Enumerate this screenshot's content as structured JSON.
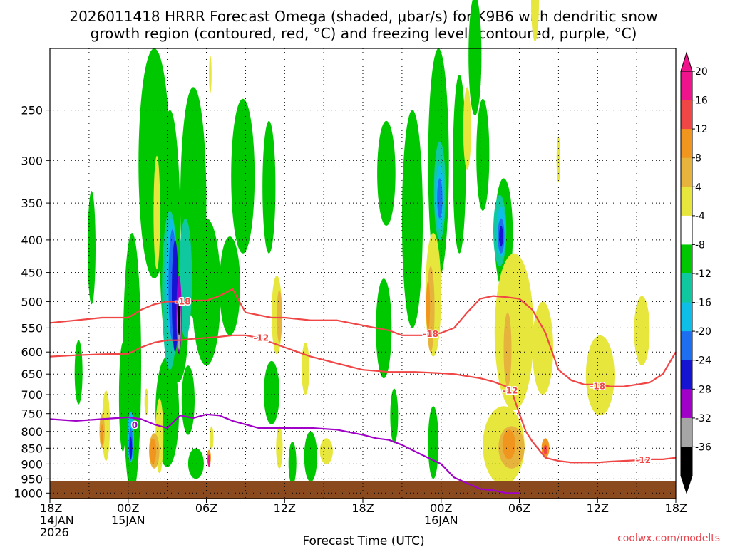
{
  "chart_data": {
    "type": "heatmap",
    "title_line1": "2026011418 HRRR Forecast Omega (shaded, μbar/s) for K9B6 with dendritic snow",
    "title_line2": "growth region (contoured, red, °C) and freezing level (contoured, purple, °C)",
    "xlabel": "Forecast Time (UTC)",
    "ylabel": "",
    "credit": "coolwx.com/modelts",
    "x_range_hours": [
      0,
      48
    ],
    "y_range_hpa": [
      1020,
      200
    ],
    "x_ticks": [
      {
        "hour": 0,
        "label": "18Z",
        "sub1": "14JAN",
        "sub2": "2026"
      },
      {
        "hour": 6,
        "label": "00Z",
        "sub1": "15JAN",
        "sub2": ""
      },
      {
        "hour": 12,
        "label": "06Z",
        "sub1": "",
        "sub2": ""
      },
      {
        "hour": 18,
        "label": "12Z",
        "sub1": "",
        "sub2": ""
      },
      {
        "hour": 24,
        "label": "18Z",
        "sub1": "",
        "sub2": ""
      },
      {
        "hour": 30,
        "label": "00Z",
        "sub1": "16JAN",
        "sub2": ""
      },
      {
        "hour": 36,
        "label": "06Z",
        "sub1": "",
        "sub2": ""
      },
      {
        "hour": 42,
        "label": "12Z",
        "sub1": "",
        "sub2": ""
      },
      {
        "hour": 48,
        "label": "18Z",
        "sub1": "",
        "sub2": ""
      }
    ],
    "y_ticks": [
      250,
      300,
      350,
      400,
      450,
      500,
      550,
      600,
      650,
      700,
      750,
      800,
      850,
      900,
      950,
      1000
    ],
    "colorbar": {
      "levels": [
        -36,
        -32,
        -28,
        -24,
        -20,
        -16,
        -12,
        -8,
        -4,
        4,
        8,
        12,
        16,
        20
      ],
      "colors": [
        "#000000",
        "#a6a6a6",
        "#a100c8",
        "#1414d2",
        "#1e6ef0",
        "#0fbee6",
        "#10c8a0",
        "#00c800",
        "#ffffff",
        "#e6e63c",
        "#e6b43c",
        "#f0961e",
        "#f04646",
        "#f0148c"
      ],
      "labels": [
        "-36",
        "-32",
        "-28",
        "-24",
        "-20",
        "-16",
        "-12",
        "-8",
        "-4",
        "4",
        "8",
        "12",
        "16",
        "20"
      ]
    },
    "omega_cells": [
      {
        "t": 9.2,
        "p": 430,
        "dt": 1.6,
        "dp": 360,
        "v": -8
      },
      {
        "t": 8.0,
        "p": 330,
        "dt": 2.4,
        "dp": 260,
        "v": -8
      },
      {
        "t": 9.8,
        "p": 560,
        "dt": 1.6,
        "dp": 220,
        "v": -8
      },
      {
        "t": 11.0,
        "p": 380,
        "dt": 2.0,
        "dp": 300,
        "v": -8
      },
      {
        "t": 12.0,
        "p": 500,
        "dt": 2.2,
        "dp": 260,
        "v": -8
      },
      {
        "t": 13.8,
        "p": 480,
        "dt": 1.6,
        "dp": 170,
        "v": -8
      },
      {
        "t": 14.8,
        "p": 330,
        "dt": 1.8,
        "dp": 180,
        "v": -8
      },
      {
        "t": 16.8,
        "p": 340,
        "dt": 1.0,
        "dp": 160,
        "v": -8
      },
      {
        "t": 3.2,
        "p": 420,
        "dt": 0.6,
        "dp": 170,
        "v": -8
      },
      {
        "t": 2.2,
        "p": 650,
        "dt": 0.6,
        "dp": 150,
        "v": -8
      },
      {
        "t": 10.6,
        "p": 720,
        "dt": 1.0,
        "dp": 180,
        "v": -8
      },
      {
        "t": 17.0,
        "p": 700,
        "dt": 1.2,
        "dp": 160,
        "v": -8
      },
      {
        "t": 18.6,
        "p": 900,
        "dt": 0.6,
        "dp": 140,
        "v": -8
      },
      {
        "t": 25.8,
        "p": 320,
        "dt": 1.4,
        "dp": 120,
        "v": -8
      },
      {
        "t": 25.6,
        "p": 560,
        "dt": 1.2,
        "dp": 200,
        "v": -8
      },
      {
        "t": 27.8,
        "p": 400,
        "dt": 1.6,
        "dp": 300,
        "v": -8
      },
      {
        "t": 29.8,
        "p": 330,
        "dt": 1.6,
        "dp": 260,
        "v": -8
      },
      {
        "t": 31.4,
        "p": 320,
        "dt": 1.0,
        "dp": 200,
        "v": -8
      },
      {
        "t": 32.6,
        "p": 210,
        "dt": 1.0,
        "dp": 90,
        "v": -8
      },
      {
        "t": 33.2,
        "p": 300,
        "dt": 1.0,
        "dp": 120,
        "v": -8
      },
      {
        "t": 34.8,
        "p": 400,
        "dt": 1.4,
        "dp": 160,
        "v": -8
      },
      {
        "t": 29.4,
        "p": 840,
        "dt": 0.8,
        "dp": 220,
        "v": -8
      },
      {
        "t": 26.4,
        "p": 760,
        "dt": 0.6,
        "dp": 150,
        "v": -8
      },
      {
        "t": 34.2,
        "p": 880,
        "dt": 0.6,
        "dp": 120,
        "v": -8
      },
      {
        "t": 5.6,
        "p": 720,
        "dt": 0.6,
        "dp": 280,
        "v": -8
      },
      {
        "t": 9.0,
        "p": 760,
        "dt": 1.8,
        "dp": 300,
        "v": -8
      },
      {
        "t": 6.3,
        "p": 700,
        "dt": 1.4,
        "dp": 620,
        "v": -8
      },
      {
        "t": 11.2,
        "p": 900,
        "dt": 1.2,
        "dp": 100,
        "v": -8
      },
      {
        "t": 20.0,
        "p": 880,
        "dt": 1.0,
        "dp": 160,
        "v": -8
      },
      {
        "t": 9.2,
        "p": 500,
        "dt": 1.2,
        "dp": 280,
        "v": -12
      },
      {
        "t": 10.4,
        "p": 470,
        "dt": 1.0,
        "dp": 200,
        "v": -12
      },
      {
        "t": 29.9,
        "p": 340,
        "dt": 0.9,
        "dp": 120,
        "v": -12
      },
      {
        "t": 34.5,
        "p": 390,
        "dt": 1.0,
        "dp": 100,
        "v": -12
      },
      {
        "t": 9.3,
        "p": 470,
        "dt": 0.8,
        "dp": 200,
        "v": -16
      },
      {
        "t": 6.2,
        "p": 820,
        "dt": 0.5,
        "dp": 150,
        "v": -16
      },
      {
        "t": 29.9,
        "p": 345,
        "dt": 0.6,
        "dp": 80,
        "v": -16
      },
      {
        "t": 34.6,
        "p": 390,
        "dt": 0.7,
        "dp": 70,
        "v": -16
      },
      {
        "t": 9.4,
        "p": 480,
        "dt": 0.6,
        "dp": 190,
        "v": -20
      },
      {
        "t": 6.2,
        "p": 840,
        "dt": 0.3,
        "dp": 100,
        "v": -20
      },
      {
        "t": 29.9,
        "p": 345,
        "dt": 0.4,
        "dp": 50,
        "v": -20
      },
      {
        "t": 34.6,
        "p": 395,
        "dt": 0.5,
        "dp": 50,
        "v": -20
      },
      {
        "t": 9.6,
        "p": 500,
        "dt": 0.5,
        "dp": 200,
        "v": -24
      },
      {
        "t": 6.2,
        "p": 850,
        "dt": 0.2,
        "dp": 70,
        "v": -24
      },
      {
        "t": 34.6,
        "p": 395,
        "dt": 0.3,
        "dp": 30,
        "v": -24
      },
      {
        "t": 9.9,
        "p": 530,
        "dt": 0.4,
        "dp": 150,
        "v": -28
      },
      {
        "t": 9.9,
        "p": 545,
        "dt": 0.3,
        "dp": 100,
        "v": -32
      },
      {
        "t": 9.9,
        "p": 530,
        "dt": 0.2,
        "dp": 70,
        "v": -36
      },
      {
        "t": 12.3,
        "p": 220,
        "dt": 0.2,
        "dp": 30,
        "v": 4
      },
      {
        "t": 8.2,
        "p": 370,
        "dt": 0.5,
        "dp": 150,
        "v": 4
      },
      {
        "t": 17.4,
        "p": 530,
        "dt": 0.8,
        "dp": 150,
        "v": 4
      },
      {
        "t": 19.6,
        "p": 640,
        "dt": 0.6,
        "dp": 120,
        "v": 4
      },
      {
        "t": 17.6,
        "p": 850,
        "dt": 0.5,
        "dp": 130,
        "v": 4
      },
      {
        "t": 21.2,
        "p": 860,
        "dt": 1.0,
        "dp": 80,
        "v": 4
      },
      {
        "t": 29.4,
        "p": 500,
        "dt": 1.2,
        "dp": 220,
        "v": 4
      },
      {
        "t": 32.0,
        "p": 270,
        "dt": 0.6,
        "dp": 80,
        "v": 4
      },
      {
        "t": 35.6,
        "p": 580,
        "dt": 3.0,
        "dp": 320,
        "v": 4
      },
      {
        "t": 34.8,
        "p": 850,
        "dt": 3.2,
        "dp": 240,
        "v": 4
      },
      {
        "t": 37.8,
        "p": 600,
        "dt": 1.6,
        "dp": 200,
        "v": 4
      },
      {
        "t": 42.2,
        "p": 660,
        "dt": 2.2,
        "dp": 190,
        "v": 4
      },
      {
        "t": 45.4,
        "p": 560,
        "dt": 1.2,
        "dp": 140,
        "v": 4
      },
      {
        "t": 37.2,
        "p": 170,
        "dt": 0.6,
        "dp": 50,
        "v": 4
      },
      {
        "t": 39.0,
        "p": 300,
        "dt": 0.3,
        "dp": 50,
        "v": 4
      },
      {
        "t": 7.4,
        "p": 720,
        "dt": 0.3,
        "dp": 70,
        "v": 4
      },
      {
        "t": 8.4,
        "p": 820,
        "dt": 0.6,
        "dp": 220,
        "v": 4
      },
      {
        "t": 12.4,
        "p": 820,
        "dt": 0.3,
        "dp": 70,
        "v": 4
      },
      {
        "t": 4.3,
        "p": 790,
        "dt": 0.6,
        "dp": 200,
        "v": 4
      },
      {
        "t": 8.0,
        "p": 860,
        "dt": 0.8,
        "dp": 110,
        "v": 8
      },
      {
        "t": 29.2,
        "p": 520,
        "dt": 0.6,
        "dp": 160,
        "v": 8
      },
      {
        "t": 35.1,
        "p": 600,
        "dt": 0.6,
        "dp": 160,
        "v": 8
      },
      {
        "t": 35.4,
        "p": 850,
        "dt": 2.0,
        "dp": 130,
        "v": 8
      },
      {
        "t": 17.6,
        "p": 530,
        "dt": 0.4,
        "dp": 100,
        "v": 8
      },
      {
        "t": 4.0,
        "p": 800,
        "dt": 0.4,
        "dp": 100,
        "v": 8
      },
      {
        "t": 29.0,
        "p": 510,
        "dt": 0.3,
        "dp": 90,
        "v": 12
      },
      {
        "t": 35.2,
        "p": 840,
        "dt": 1.0,
        "dp": 90,
        "v": 12
      },
      {
        "t": 38.0,
        "p": 850,
        "dt": 0.6,
        "dp": 60,
        "v": 12
      },
      {
        "t": 7.9,
        "p": 860,
        "dt": 0.5,
        "dp": 80,
        "v": 12
      },
      {
        "t": 4.0,
        "p": 810,
        "dt": 0.2,
        "dp": 60,
        "v": 12
      },
      {
        "t": 12.2,
        "p": 880,
        "dt": 0.3,
        "dp": 50,
        "v": 12
      },
      {
        "t": 38.0,
        "p": 855,
        "dt": 0.3,
        "dp": 30,
        "v": 16
      },
      {
        "t": 12.2,
        "p": 890,
        "dt": 0.2,
        "dp": 40,
        "v": 20
      }
    ],
    "contours": [
      {
        "name": "-18 isotherm",
        "label": "-18",
        "color": "#f04646",
        "t": [
          0,
          2,
          4,
          6,
          7,
          8,
          9,
          10,
          11,
          12,
          13,
          14,
          15,
          17,
          18,
          20,
          22,
          24,
          26,
          27,
          28,
          29,
          30,
          31,
          32,
          33,
          34,
          35,
          36,
          37,
          38,
          39,
          40,
          41,
          42,
          43,
          44,
          45,
          46,
          47,
          48
        ],
        "p": [
          540,
          535,
          530,
          530,
          515,
          505,
          500,
          500,
          498,
          498,
          490,
          478,
          520,
          530,
          530,
          535,
          535,
          545,
          555,
          565,
          565,
          565,
          560,
          550,
          520,
          495,
          490,
          492,
          495,
          515,
          560,
          640,
          665,
          675,
          675,
          680,
          680,
          675,
          670,
          650,
          600
        ]
      },
      {
        "name": "-12 isotherm",
        "label": "-12",
        "color": "#f04646",
        "t": [
          0,
          2,
          4,
          6,
          7,
          8,
          9,
          10,
          11,
          12,
          13,
          14,
          15,
          16,
          17,
          18,
          19,
          20,
          22,
          24,
          26,
          28,
          30,
          31,
          32,
          33,
          34,
          35,
          35.5,
          36,
          36.5,
          37,
          38,
          39,
          40,
          41,
          42,
          43,
          44,
          45,
          46,
          47,
          48
        ],
        "p": [
          610,
          607,
          605,
          604,
          590,
          580,
          575,
          575,
          572,
          570,
          568,
          565,
          565,
          570,
          580,
          590,
          600,
          610,
          625,
          640,
          645,
          645,
          648,
          650,
          655,
          660,
          668,
          680,
          700,
          750,
          800,
          830,
          880,
          890,
          895,
          895,
          895,
          892,
          890,
          888,
          885,
          885,
          880
        ]
      },
      {
        "name": "0 isotherm",
        "label": "0",
        "color": "#a000c8",
        "t": [
          0,
          2,
          4,
          6,
          7,
          8,
          9,
          10,
          11,
          12,
          13,
          14,
          15,
          16,
          18,
          20,
          22,
          24,
          25,
          26,
          27,
          28,
          29,
          30,
          31,
          32,
          33,
          34,
          35,
          36
        ],
        "p": [
          765,
          770,
          765,
          760,
          765,
          780,
          790,
          755,
          762,
          752,
          755,
          770,
          780,
          790,
          790,
          790,
          795,
          810,
          820,
          825,
          840,
          860,
          880,
          900,
          945,
          965,
          985,
          990,
          1000,
          1000
        ]
      }
    ],
    "contour_labels": [
      {
        "text": "-18",
        "t": 10.2,
        "p": 500,
        "color": "#f04646"
      },
      {
        "text": "-12",
        "t": 16.2,
        "p": 570,
        "color": "#f04646"
      },
      {
        "text": "-18",
        "t": 29.2,
        "p": 562,
        "color": "#f04646"
      },
      {
        "text": "-12",
        "t": 35.3,
        "p": 690,
        "color": "#f04646"
      },
      {
        "text": "-18",
        "t": 42.0,
        "p": 680,
        "color": "#f04646"
      },
      {
        "text": "-12",
        "t": 45.5,
        "p": 888,
        "color": "#f04646"
      },
      {
        "text": "0",
        "t": 6.5,
        "p": 782,
        "color": "#a000c8"
      }
    ]
  }
}
